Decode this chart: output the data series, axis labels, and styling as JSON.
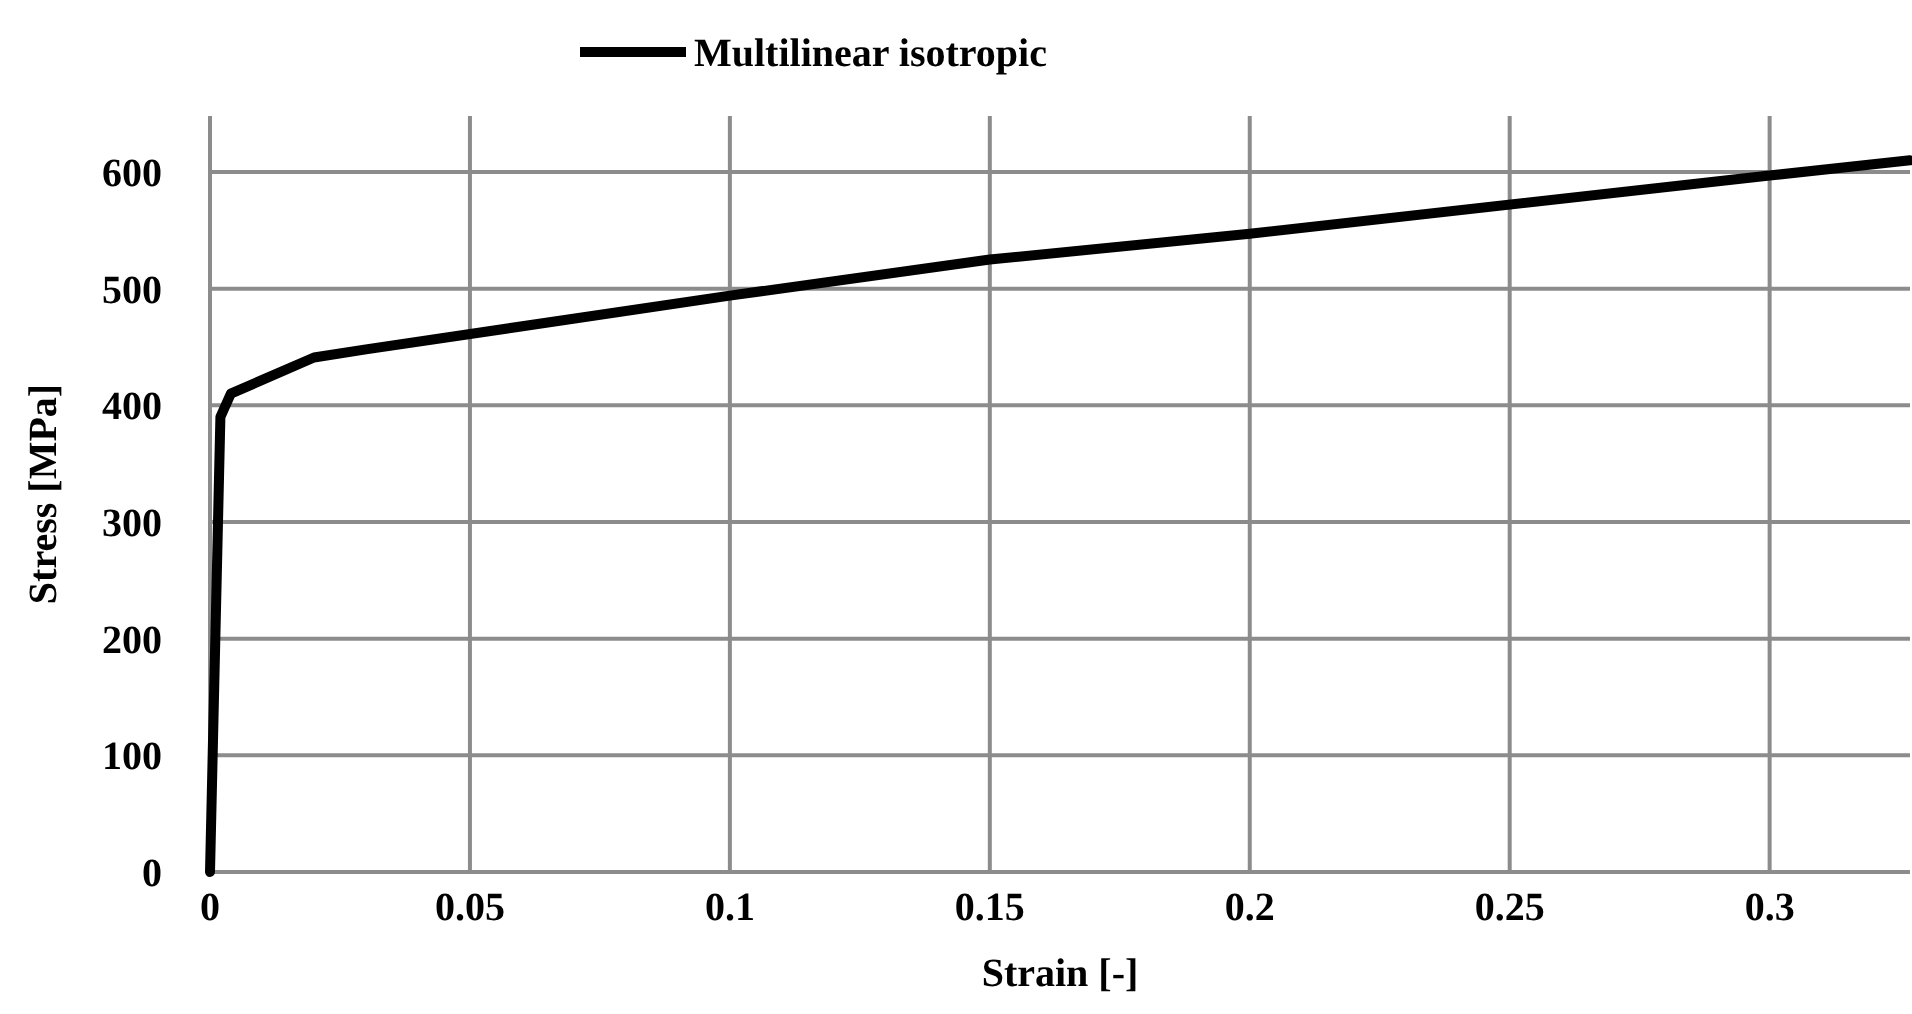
{
  "chart_data": {
    "type": "line",
    "xlabel": "Strain [-]",
    "ylabel": "Stress [MPa]",
    "x": [
      0,
      0.002,
      0.004,
      0.02,
      0.03,
      0.1,
      0.15,
      0.2,
      0.3,
      0.327
    ],
    "series": [
      {
        "name": "Multilinear isotropic",
        "color": "#000000",
        "values": [
          0,
          390,
          410,
          441,
          448,
          494,
          525,
          547,
          597,
          610
        ]
      }
    ],
    "xlim": [
      0,
      0.327
    ],
    "ylim": [
      0,
      648
    ],
    "xticks": [
      0,
      0.05,
      0.1,
      0.15,
      0.2,
      0.25,
      0.3
    ],
    "yticks": [
      0,
      100,
      200,
      300,
      400,
      500,
      600
    ],
    "grid": true,
    "legend": "top",
    "marker": "none",
    "line_style": "solid"
  }
}
